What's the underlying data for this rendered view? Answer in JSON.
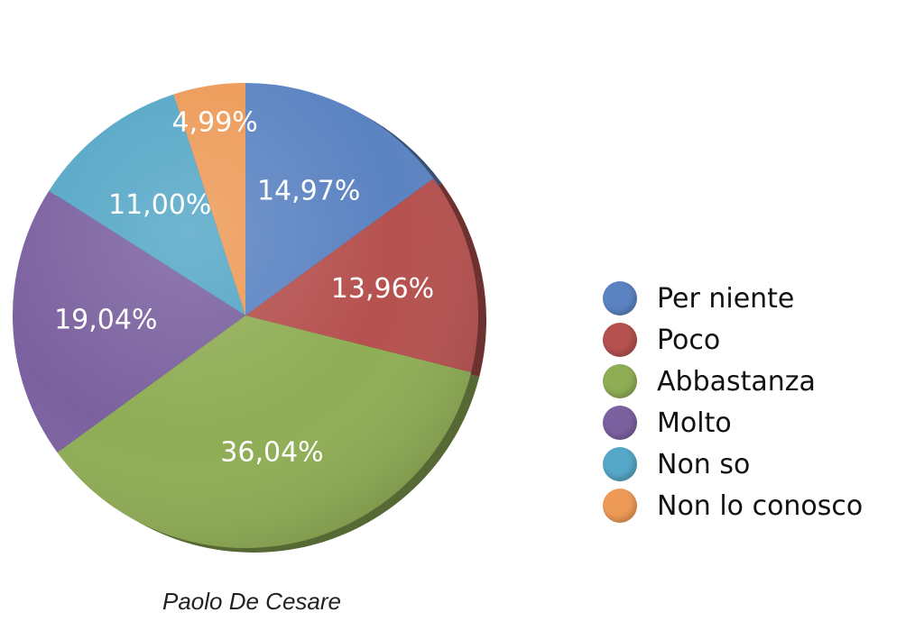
{
  "chart_data": {
    "type": "pie",
    "slices": [
      {
        "label": "Per niente",
        "value": 14.97,
        "value_label": "14,97%",
        "color": "#5B83C2"
      },
      {
        "label": "Poco",
        "value": 13.96,
        "value_label": "13,96%",
        "color": "#B5514F"
      },
      {
        "label": "Abbastanza",
        "value": 36.04,
        "value_label": "36,04%",
        "color": "#8FAD55"
      },
      {
        "label": "Molto",
        "value": 19.04,
        "value_label": "19,04%",
        "color": "#7B619F"
      },
      {
        "label": "Non so",
        "value": 11.0,
        "value_label": "11,00%",
        "color": "#55A7C7"
      },
      {
        "label": "Non lo conosco",
        "value": 4.99,
        "value_label": "4,99%",
        "color": "#ED9A57"
      }
    ],
    "start": "top, clockwise",
    "legend_position": "right"
  },
  "caption": "Paolo De Cesare"
}
